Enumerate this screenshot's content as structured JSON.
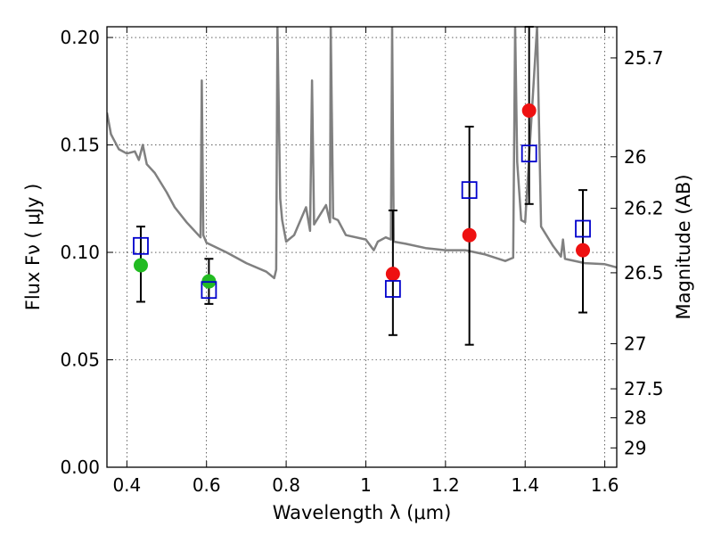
{
  "chart_data": {
    "type": "scatter",
    "xlabel": "Wavelength  λ (μm)",
    "ylabel": "Flux  Fν  ( μJy )",
    "ylabel_right": "Magnitude (AB)",
    "xlim": [
      0.35,
      1.63
    ],
    "ylim": [
      0.0,
      0.205
    ],
    "grid": true,
    "x_ticks": [
      0.4,
      0.6,
      0.8,
      1.0,
      1.2,
      1.4,
      1.6
    ],
    "x_tick_labels": [
      "0.4",
      "0.6",
      "0.8",
      "1",
      "1.2",
      "1.4",
      "1.6"
    ],
    "y_ticks": [
      0.0,
      0.05,
      0.1,
      0.15,
      0.2
    ],
    "y_tick_labels": [
      "0.00",
      "0.05",
      "0.10",
      "0.15",
      "0.20"
    ],
    "right_ticks": [
      {
        "flux": 0.1905,
        "label": "25.7"
      },
      {
        "flux": 0.1445,
        "label": "26"
      },
      {
        "flux": 0.1205,
        "label": "26.2"
      },
      {
        "flux": 0.0905,
        "label": "26.5"
      },
      {
        "flux": 0.0575,
        "label": "27"
      },
      {
        "flux": 0.0365,
        "label": "27.5"
      },
      {
        "flux": 0.023,
        "label": "28"
      },
      {
        "flux": 0.009,
        "label": "29"
      }
    ],
    "series": [
      {
        "marker": "circle",
        "color": "#22bb22",
        "points": [
          {
            "x": 0.435,
            "y": 0.094
          },
          {
            "x": 0.606,
            "y": 0.0865
          }
        ]
      },
      {
        "marker": "circle",
        "color": "#ee1111",
        "points": [
          {
            "x": 1.068,
            "y": 0.09
          },
          {
            "x": 1.26,
            "y": 0.108
          },
          {
            "x": 1.41,
            "y": 0.166
          },
          {
            "x": 1.545,
            "y": 0.101
          }
        ]
      },
      {
        "marker": "open-square",
        "color": "#0000cc",
        "points": [
          {
            "x": 0.435,
            "y": 0.103
          },
          {
            "x": 0.606,
            "y": 0.0825
          },
          {
            "x": 1.068,
            "y": 0.083
          },
          {
            "x": 1.26,
            "y": 0.129
          },
          {
            "x": 1.41,
            "y": 0.146
          },
          {
            "x": 1.545,
            "y": 0.111
          }
        ]
      }
    ],
    "error_bars": [
      {
        "x": 0.435,
        "y": 0.094,
        "low": 0.077,
        "high": 0.112
      },
      {
        "x": 0.606,
        "y": 0.0865,
        "low": 0.076,
        "high": 0.097
      },
      {
        "x": 1.068,
        "y": 0.09,
        "low": 0.0615,
        "high": 0.1195
      },
      {
        "x": 1.26,
        "y": 0.108,
        "low": 0.057,
        "high": 0.1585
      },
      {
        "x": 1.41,
        "y": 0.166,
        "low": 0.1225,
        "high": 0.205
      },
      {
        "x": 1.545,
        "y": 0.101,
        "low": 0.072,
        "high": 0.129
      }
    ],
    "model_spectrum": {
      "color": "#808080",
      "points": [
        [
          0.35,
          0.165
        ],
        [
          0.36,
          0.155
        ],
        [
          0.38,
          0.148
        ],
        [
          0.4,
          0.146
        ],
        [
          0.42,
          0.147
        ],
        [
          0.43,
          0.143
        ],
        [
          0.44,
          0.15
        ],
        [
          0.45,
          0.141
        ],
        [
          0.47,
          0.137
        ],
        [
          0.5,
          0.128
        ],
        [
          0.52,
          0.121
        ],
        [
          0.55,
          0.114
        ],
        [
          0.575,
          0.109
        ],
        [
          0.585,
          0.107
        ],
        [
          0.588,
          0.18
        ],
        [
          0.592,
          0.108
        ],
        [
          0.6,
          0.1045
        ],
        [
          0.65,
          0.1
        ],
        [
          0.7,
          0.095
        ],
        [
          0.75,
          0.091
        ],
        [
          0.77,
          0.088
        ],
        [
          0.775,
          0.092
        ],
        [
          0.778,
          0.205
        ],
        [
          0.785,
          0.125
        ],
        [
          0.79,
          0.115
        ],
        [
          0.8,
          0.105
        ],
        [
          0.82,
          0.108
        ],
        [
          0.85,
          0.121
        ],
        [
          0.86,
          0.11
        ],
        [
          0.865,
          0.18
        ],
        [
          0.87,
          0.113
        ],
        [
          0.9,
          0.122
        ],
        [
          0.91,
          0.114
        ],
        [
          0.912,
          0.205
        ],
        [
          0.918,
          0.116
        ],
        [
          0.93,
          0.115
        ],
        [
          0.95,
          0.108
        ],
        [
          1.0,
          0.106
        ],
        [
          1.02,
          0.101
        ],
        [
          1.03,
          0.105
        ],
        [
          1.05,
          0.107
        ],
        [
          1.063,
          0.106
        ],
        [
          1.066,
          0.205
        ],
        [
          1.07,
          0.105
        ],
        [
          1.1,
          0.104
        ],
        [
          1.15,
          0.102
        ],
        [
          1.2,
          0.101
        ],
        [
          1.25,
          0.101
        ],
        [
          1.3,
          0.099
        ],
        [
          1.35,
          0.096
        ],
        [
          1.37,
          0.0975
        ],
        [
          1.375,
          0.205
        ],
        [
          1.38,
          0.142
        ],
        [
          1.39,
          0.115
        ],
        [
          1.4,
          0.114
        ],
        [
          1.43,
          0.205
        ],
        [
          1.44,
          0.112
        ],
        [
          1.47,
          0.103
        ],
        [
          1.49,
          0.098
        ],
        [
          1.495,
          0.106
        ],
        [
          1.5,
          0.097
        ],
        [
          1.55,
          0.095
        ],
        [
          1.6,
          0.0945
        ],
        [
          1.63,
          0.093
        ]
      ]
    }
  }
}
